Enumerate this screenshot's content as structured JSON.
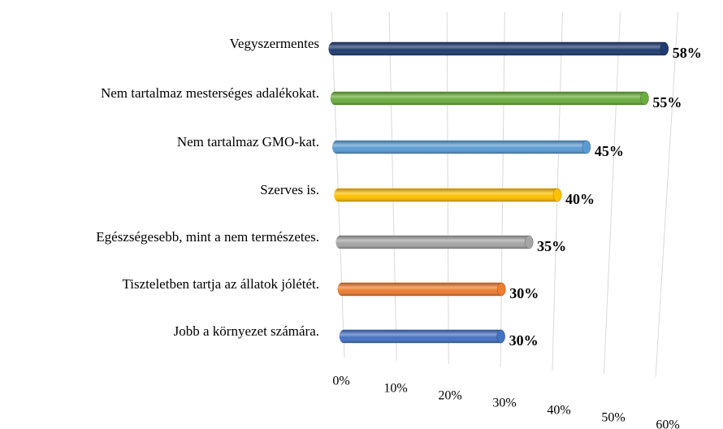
{
  "chart_data": {
    "type": "bar",
    "orientation": "horizontal",
    "categories": [
      "Vegyszermentes",
      "Nem tartalmaz mesterséges adalékokat.",
      "Nem tartalmaz GMO-kat.",
      "Szerves is.",
      "Egészségesebb, mint a nem természetes.",
      "Tiszteletben tartja az állatok jólétét.",
      "Jobb a környezet számára."
    ],
    "values": [
      58,
      55,
      45,
      40,
      35,
      30,
      30
    ],
    "value_labels": [
      "58%",
      "55%",
      "45%",
      "40%",
      "35%",
      "30%",
      "30%"
    ],
    "colors": [
      "#1f3b70",
      "#6aad3d",
      "#5b9bd5",
      "#ffc000",
      "#a5a5a5",
      "#ed7d31",
      "#4472c4"
    ],
    "xlim": [
      0,
      60
    ],
    "xticks": [
      {
        "value": 0,
        "label": "0%"
      },
      {
        "value": 10,
        "label": "10%"
      },
      {
        "value": 20,
        "label": "20%"
      },
      {
        "value": 30,
        "label": "30%"
      },
      {
        "value": 40,
        "label": "40%"
      },
      {
        "value": 50,
        "label": "50%"
      },
      {
        "value": 60,
        "label": "60%"
      }
    ],
    "grid": true
  }
}
